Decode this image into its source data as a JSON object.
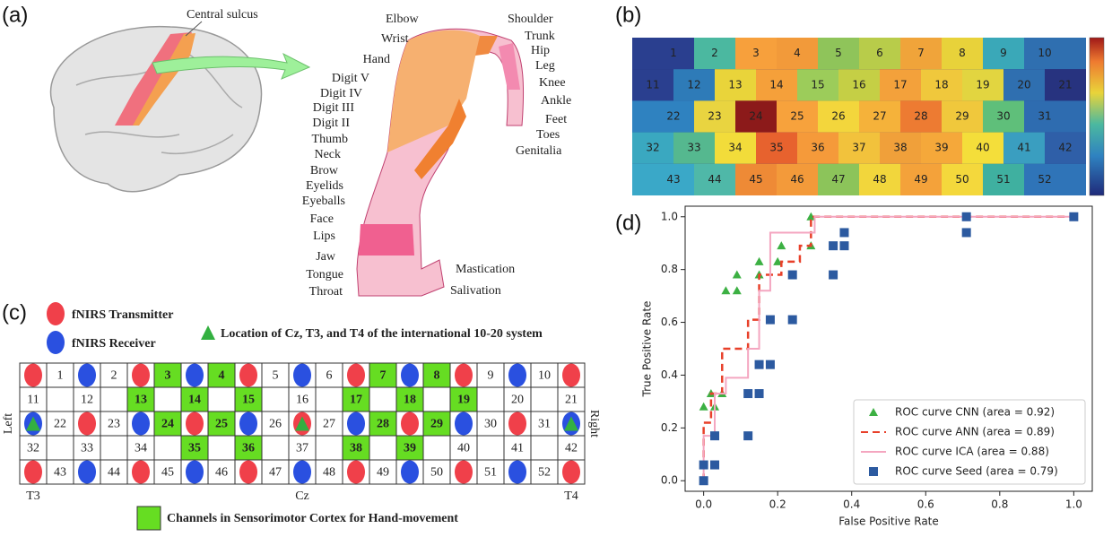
{
  "panel_labels": [
    "(a)",
    "(b)",
    "(c)",
    "(d)"
  ],
  "motor_map": {
    "central_sulcus": "Central sulcus",
    "body_parts": [
      "Elbow",
      "Shoulder",
      "Wrist",
      "Trunk",
      "Hip",
      "Hand",
      "Leg",
      "Digit V",
      "Knee",
      "Digit IV",
      "Ankle",
      "Digit III",
      "Feet",
      "Digit II",
      "Toes",
      "Thumb",
      "Genitalia",
      "Neck",
      "Brow",
      "Eyelids",
      "Eyeballs",
      "Face",
      "Lips",
      "Jaw",
      "Mastication",
      "Tongue",
      "Salivation",
      "Throat"
    ]
  },
  "heatmap": {
    "rows": [
      [
        "1",
        "2",
        "3",
        "4",
        "5",
        "6",
        "7",
        "8",
        "9",
        "10"
      ],
      [
        "11",
        "12",
        "13",
        "14",
        "15",
        "16",
        "17",
        "18",
        "19",
        "20",
        "21"
      ],
      [
        "22",
        "23",
        "24",
        "25",
        "26",
        "27",
        "28",
        "29",
        "30",
        "31"
      ],
      [
        "32",
        "33",
        "34",
        "35",
        "36",
        "37",
        "38",
        "39",
        "40",
        "41",
        "42"
      ],
      [
        "43",
        "44",
        "45",
        "46",
        "47",
        "48",
        "49",
        "50",
        "51",
        "52"
      ]
    ],
    "colors": [
      [
        "#2a3f8f",
        "#4bb8a0",
        "#f7a03c",
        "#f29a3a",
        "#8fc45a",
        "#b8cc4a",
        "#f0a43a",
        "#e8d23a",
        "#3aa8b8",
        "#2f6fb0"
      ],
      [
        "#2a3f8f",
        "#2e7bb8",
        "#e9d43a",
        "#f5a03a",
        "#9ccc5a",
        "#c5cf45",
        "#f3a13b",
        "#f0c83c",
        "#e2d540",
        "#2f6fb0",
        "#27337f"
      ],
      [
        "#2f82c0",
        "#e9d440",
        "#8c1a1a",
        "#f7a23c",
        "#f3d63c",
        "#f5b23a",
        "#ed7b32",
        "#f0c83c",
        "#5fbf7a",
        "#2e6cb0"
      ],
      [
        "#3aa8c0",
        "#55b88f",
        "#f2dc3a",
        "#e7622e",
        "#f59a3a",
        "#f2c23c",
        "#f0a03a",
        "#f5a83a",
        "#f4de3a",
        "#3a9ec0",
        "#2f5fa8"
      ],
      [
        "#3aa8c8",
        "#4fb8a8",
        "#ee8a36",
        "#f39a3a",
        "#8cc45a",
        "#f2d63c",
        "#f4a23a",
        "#f4d83c",
        "#3fb0a0",
        "#2f74b8"
      ]
    ]
  },
  "channel_layout": {
    "legend": {
      "transmitter": "fNIRS Transmitter",
      "receiver": "fNIRS Receiver",
      "reference": "Location of Cz, T3, and T4 of the international 10-20 system",
      "highlight": "Channels in Sensorimotor Cortex for Hand-movement"
    },
    "transmitter_color": "#f0404a",
    "receiver_color": "#2a50e0",
    "reference_color": "#33b040",
    "highlight_color": "#66dd22",
    "rows": [
      [
        "1",
        "2",
        "3",
        "4",
        "5",
        "6",
        "7",
        "8",
        "9",
        "10"
      ],
      [
        "11",
        "12",
        "13",
        "14",
        "15",
        "16",
        "17",
        "18",
        "19",
        "20",
        "21"
      ],
      [
        "22",
        "23",
        "24",
        "25",
        "26",
        "27",
        "28",
        "29",
        "30",
        "31"
      ],
      [
        "32",
        "33",
        "34",
        "35",
        "36",
        "37",
        "38",
        "39",
        "40",
        "41",
        "42"
      ],
      [
        "43",
        "44",
        "45",
        "46",
        "47",
        "48",
        "49",
        "50",
        "51",
        "52"
      ]
    ],
    "highlighted": [
      3,
      4,
      7,
      8,
      13,
      14,
      15,
      17,
      18,
      19,
      24,
      25,
      28,
      29,
      35,
      36,
      38,
      39
    ],
    "side_labels": [
      "Left",
      "Right"
    ],
    "reference_labels": [
      "T3",
      "Cz",
      "T4"
    ]
  },
  "chart_data": {
    "type": "scatter-step",
    "xlabel": "False Positive Rate",
    "ylabel": "True Positive Rate",
    "xlim": [
      -0.05,
      1.05
    ],
    "ylim": [
      -0.04,
      1.04
    ],
    "xticks": [
      {
        "value": 0,
        "label": "0.0"
      },
      0.2,
      0.4,
      0.6,
      0.8,
      {
        "value": 1,
        "label": "1.0"
      }
    ],
    "yticks": [
      {
        "value": 0,
        "label": "0.0"
      },
      0.2,
      0.4,
      0.6,
      0.8,
      {
        "value": 1,
        "label": "1.0"
      }
    ],
    "legend": "lower right",
    "series": [
      {
        "name": "ROC curve CNN (area = 0.92)",
        "color": "#3cb043",
        "marker": "triangle",
        "x": [
          0,
          0.03,
          0.02,
          0.05,
          0.06,
          0.09,
          0.09,
          0.15,
          0.15,
          0.2,
          0.21,
          0.29,
          0.29
        ],
        "values": [
          0.28,
          0.28,
          0.33,
          0.33,
          0.72,
          0.72,
          0.78,
          0.78,
          0.83,
          0.83,
          0.89,
          0.89,
          1.0
        ]
      },
      {
        "name": "ROC curve ANN (area = 0.89)",
        "color": "#e8402a",
        "linestyle": "dashed",
        "x": [
          0,
          0,
          0.02,
          0.02,
          0.05,
          0.05,
          0.12,
          0.12,
          0.15,
          0.15,
          0.21,
          0.21,
          0.26,
          0.26,
          0.29,
          0.29,
          1
        ],
        "values": [
          0,
          0.22,
          0.22,
          0.33,
          0.33,
          0.5,
          0.5,
          0.61,
          0.61,
          0.78,
          0.78,
          0.83,
          0.83,
          0.89,
          0.89,
          1,
          1
        ]
      },
      {
        "name": "ROC curve ICA (area = 0.88)",
        "color": "#f4a6c0",
        "linestyle": "solid",
        "x": [
          0,
          0,
          0.03,
          0.03,
          0.06,
          0.06,
          0.12,
          0.12,
          0.15,
          0.15,
          0.18,
          0.18,
          0.3,
          0.3,
          1
        ],
        "values": [
          0,
          0.17,
          0.17,
          0.33,
          0.33,
          0.39,
          0.39,
          0.5,
          0.5,
          0.72,
          0.72,
          0.94,
          0.94,
          1,
          1
        ]
      },
      {
        "name": "ROC curve Seed (area = 0.79)",
        "color": "#2c5aa0",
        "marker": "square",
        "x": [
          0,
          0,
          0.03,
          0.03,
          0.12,
          0.12,
          0.15,
          0.15,
          0.18,
          0.18,
          0.24,
          0.24,
          0.35,
          0.35,
          0.38,
          0.38,
          0.71,
          0.71,
          1.0
        ],
        "values": [
          0,
          0.06,
          0.06,
          0.17,
          0.17,
          0.33,
          0.33,
          0.44,
          0.44,
          0.61,
          0.61,
          0.78,
          0.78,
          0.89,
          0.89,
          0.94,
          0.94,
          1.0,
          1.0
        ]
      }
    ]
  }
}
